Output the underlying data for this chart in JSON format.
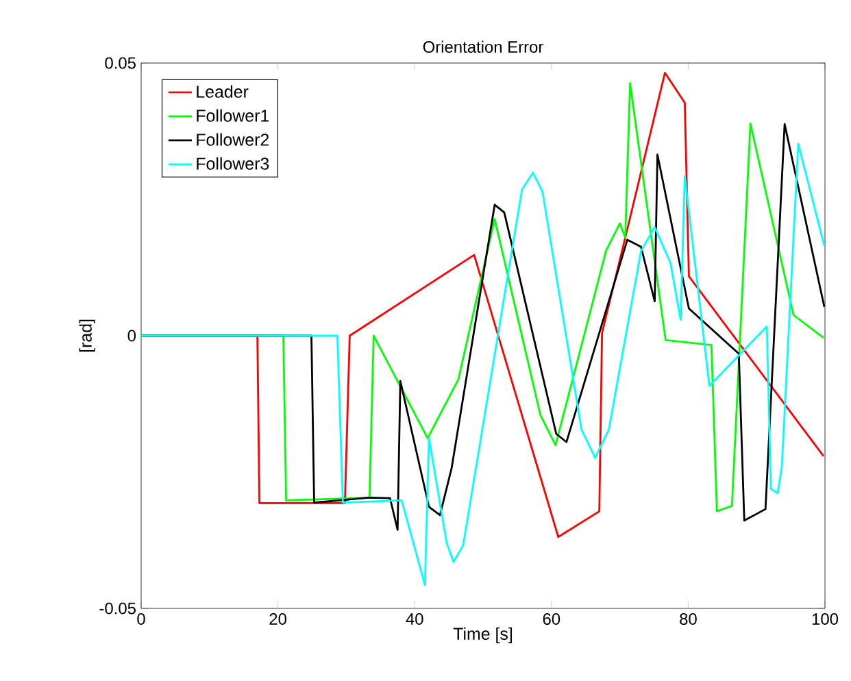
{
  "chart_data": {
    "type": "line",
    "title": "Orientation Error",
    "xlabel": "Time [s]",
    "ylabel": "[rad]",
    "xlim": [
      0,
      100
    ],
    "ylim": [
      -0.05,
      0.05
    ],
    "xticks": [
      0,
      20,
      40,
      60,
      80,
      100
    ],
    "yticks": [
      -0.05,
      0,
      0.05
    ],
    "legend": "top left",
    "grid": false,
    "marker": "none",
    "line_style": "solid",
    "series": [
      {
        "name": "Leader",
        "color": "#ff0000",
        "x": [
          0,
          17,
          17.3,
          29.8,
          30.5,
          48.7,
          61,
          67,
          67.4,
          70.8,
          76.6,
          79.5,
          80.1,
          99.8
        ],
        "values": [
          0,
          0,
          -0.0307,
          -0.0307,
          0,
          0.0148,
          -0.0369,
          -0.0322,
          0.0005,
          0.018,
          0.0482,
          0.0427,
          0.0109,
          -0.0221
        ]
      },
      {
        "name": "Follower1",
        "color": "#00ff00",
        "x": [
          0,
          20.8,
          21.2,
          33.4,
          34,
          41.9,
          46.4,
          51.7,
          58.4,
          60.6,
          68,
          70,
          70.8,
          71.5,
          76.7,
          83.4,
          84.2,
          86.4,
          89.1,
          95.4,
          99.8
        ],
        "values": [
          0,
          0,
          -0.0302,
          -0.0297,
          0,
          -0.0188,
          -0.008,
          0.0214,
          -0.0146,
          -0.0201,
          0.0156,
          0.0206,
          0.018,
          0.0463,
          -0.0008,
          -0.0017,
          -0.0322,
          -0.0312,
          0.0389,
          0.0038,
          -0.0004
        ]
      },
      {
        "name": "Follower2",
        "color": "#000000",
        "x": [
          0,
          24.9,
          25.3,
          33.4,
          36.4,
          37.5,
          37.9,
          42.1,
          43.7,
          45.4,
          51.7,
          53.1,
          60.7,
          62.2,
          71.1,
          73.1,
          75.1,
          75.5,
          80.1,
          87.4,
          88.2,
          91.3,
          94.1,
          99.9
        ],
        "values": [
          0,
          0,
          -0.0306,
          -0.0297,
          -0.0298,
          -0.0356,
          -0.0083,
          -0.0314,
          -0.0329,
          -0.0243,
          0.024,
          0.0226,
          -0.018,
          -0.0195,
          0.0176,
          0.0163,
          0.0063,
          0.0332,
          0.005,
          -0.0033,
          -0.0339,
          -0.0318,
          0.0388,
          0.0053
        ]
      },
      {
        "name": "Follower3",
        "color": "#00ffff",
        "x": [
          0,
          28.7,
          29.5,
          38.1,
          41.5,
          42.1,
          44.7,
          45.7,
          47.1,
          55.7,
          57.3,
          58.7,
          64.4,
          66.4,
          68.4,
          73.1,
          75.1,
          77.4,
          78.9,
          79.5,
          83.1,
          91.5,
          92.1,
          93.1,
          93.7,
          96.1,
          99.9
        ],
        "values": [
          0,
          0,
          -0.0306,
          -0.0302,
          -0.0457,
          -0.0188,
          -0.0381,
          -0.0415,
          -0.0384,
          0.0268,
          0.0299,
          0.0264,
          -0.0172,
          -0.0224,
          -0.0172,
          0.0155,
          0.0199,
          0.0134,
          0.0029,
          0.0293,
          -0.0092,
          0.0017,
          -0.0281,
          -0.0289,
          -0.0239,
          0.0352,
          0.0165
        ]
      }
    ]
  }
}
